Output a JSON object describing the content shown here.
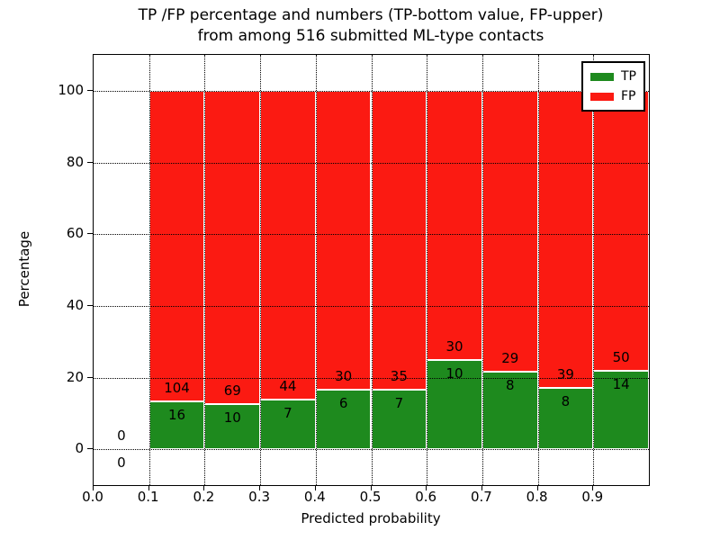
{
  "chart_data": {
    "type": "bar",
    "stacked": true,
    "title": "TP /FP percentage and numbers (TP-bottom value, FP-upper)",
    "subtitle": "from among 516 submitted ML-type contacts",
    "xlabel": "Predicted probability",
    "ylabel": "Percentage",
    "xlim": [
      0.0,
      1.0
    ],
    "ylim": [
      -10,
      110
    ],
    "x_ticks": [
      "0.0",
      "0.1",
      "0.2",
      "0.3",
      "0.4",
      "0.5",
      "0.6",
      "0.7",
      "0.8",
      "0.9"
    ],
    "y_ticks": [
      "0",
      "20",
      "40",
      "60",
      "80",
      "100"
    ],
    "grid": "dotted",
    "annotation_note": "TP count below segment boundary, FP count above",
    "colors": {
      "tp": "#1e8a1e",
      "fp": "#fb1a12"
    },
    "legend": [
      {
        "label": "TP",
        "color": "#1e8a1e"
      },
      {
        "label": "FP",
        "color": "#fb1a12"
      }
    ],
    "bins": [
      {
        "x_start": 0.0,
        "x_end": 0.1,
        "tp": 0,
        "fp": 0
      },
      {
        "x_start": 0.1,
        "x_end": 0.2,
        "tp": 16,
        "fp": 104
      },
      {
        "x_start": 0.2,
        "x_end": 0.3,
        "tp": 10,
        "fp": 69
      },
      {
        "x_start": 0.3,
        "x_end": 0.4,
        "tp": 7,
        "fp": 44
      },
      {
        "x_start": 0.4,
        "x_end": 0.5,
        "tp": 6,
        "fp": 30
      },
      {
        "x_start": 0.5,
        "x_end": 0.6,
        "tp": 7,
        "fp": 35
      },
      {
        "x_start": 0.6,
        "x_end": 0.7,
        "tp": 10,
        "fp": 30
      },
      {
        "x_start": 0.7,
        "x_end": 0.8,
        "tp": 8,
        "fp": 29
      },
      {
        "x_start": 0.8,
        "x_end": 0.9,
        "tp": 8,
        "fp": 39
      },
      {
        "x_start": 0.9,
        "x_end": 1.0,
        "tp": 14,
        "fp": 50
      }
    ]
  }
}
